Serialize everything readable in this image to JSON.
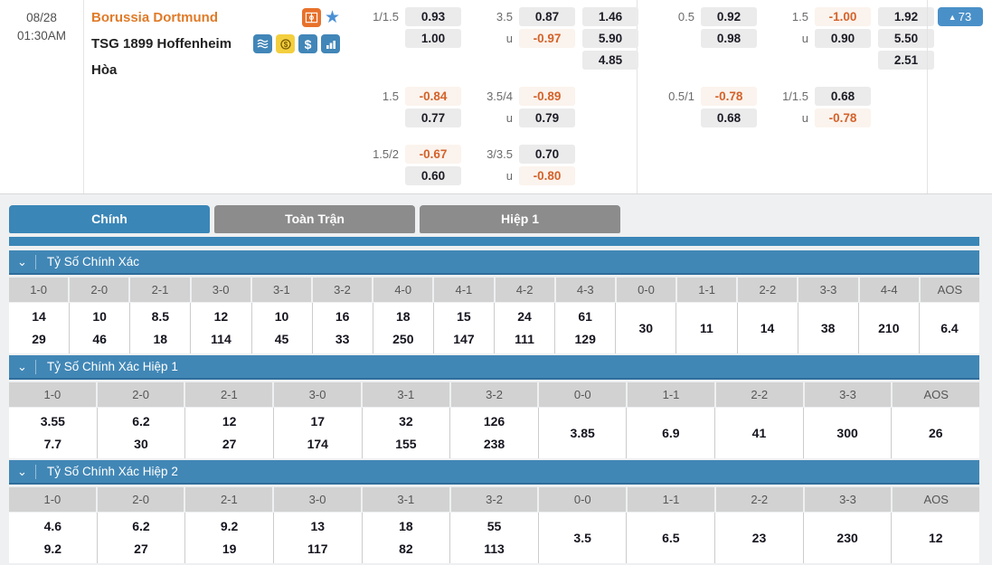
{
  "match": {
    "date": "08/28",
    "time": "01:30AM",
    "home_team": "Borussia Dortmund",
    "away_team": "TSG 1899 Hoffenheim",
    "draw_label": "Hòa",
    "index_badge": {
      "arrow": "▲",
      "value": "73"
    }
  },
  "odds": {
    "left": [
      {
        "handicap": {
          "line": "1/1.5",
          "home": "0.93",
          "away": "1.00"
        },
        "total": {
          "line": "3.5",
          "over": "0.87",
          "under_label": "u",
          "under": "-0.97"
        },
        "win_draw_win": [
          "1.46",
          "5.90",
          "4.85"
        ]
      },
      {
        "handicap": {
          "line": "1.5",
          "home": "-0.84",
          "away": "0.77"
        },
        "total": {
          "line": "3.5/4",
          "over": "-0.89",
          "under_label": "u",
          "under": "0.79"
        }
      },
      {
        "handicap": {
          "line": "1.5/2",
          "home": "-0.67",
          "away": "0.60"
        },
        "total": {
          "line": "3/3.5",
          "over": "0.70",
          "under_label": "u",
          "under": "-0.80"
        }
      }
    ],
    "right": [
      {
        "handicap": {
          "line": "0.5",
          "home": "0.92",
          "away": "0.98"
        },
        "total": {
          "line": "1.5",
          "over": "-1.00",
          "under_label": "u",
          "under": "0.90"
        },
        "win_draw_win": [
          "1.92",
          "5.50",
          "2.51"
        ]
      },
      {
        "handicap": {
          "line": "0.5/1",
          "home": "-0.78",
          "away": "0.68"
        },
        "total": {
          "line": "1/1.5",
          "over": "0.68",
          "under_label": "u",
          "under": "-0.78"
        }
      }
    ]
  },
  "tabs": [
    {
      "label": "Chính",
      "active": true
    },
    {
      "label": "Toàn Trận",
      "active": false
    },
    {
      "label": "Hiệp 1",
      "active": false
    }
  ],
  "sections": [
    {
      "title": "Tỷ Số Chính Xác",
      "columns": [
        "1-0",
        "2-0",
        "2-1",
        "3-0",
        "3-1",
        "3-2",
        "4-0",
        "4-1",
        "4-2",
        "4-3",
        "0-0",
        "1-1",
        "2-2",
        "3-3",
        "4-4",
        "AOS"
      ],
      "values": [
        [
          "14",
          "29"
        ],
        [
          "10",
          "46"
        ],
        [
          "8.5",
          "18"
        ],
        [
          "12",
          "114"
        ],
        [
          "10",
          "45"
        ],
        [
          "16",
          "33"
        ],
        [
          "18",
          "250"
        ],
        [
          "15",
          "147"
        ],
        [
          "24",
          "111"
        ],
        [
          "61",
          "129"
        ],
        [
          "30"
        ],
        [
          "11"
        ],
        [
          "14"
        ],
        [
          "38"
        ],
        [
          "210"
        ],
        [
          "6.4"
        ]
      ]
    },
    {
      "title": "Tỷ Số Chính Xác Hiệp 1",
      "columns": [
        "1-0",
        "2-0",
        "2-1",
        "3-0",
        "3-1",
        "3-2",
        "0-0",
        "1-1",
        "2-2",
        "3-3",
        "AOS"
      ],
      "values": [
        [
          "3.55",
          "7.7"
        ],
        [
          "6.2",
          "30"
        ],
        [
          "12",
          "27"
        ],
        [
          "17",
          "174"
        ],
        [
          "32",
          "155"
        ],
        [
          "126",
          "238"
        ],
        [
          "3.85"
        ],
        [
          "6.9"
        ],
        [
          "41"
        ],
        [
          "300"
        ],
        [
          "26"
        ]
      ]
    },
    {
      "title": "Tỷ Số Chính Xác Hiệp 2",
      "columns": [
        "1-0",
        "2-0",
        "2-1",
        "3-0",
        "3-1",
        "3-2",
        "0-0",
        "1-1",
        "2-2",
        "3-3",
        "AOS"
      ],
      "values": [
        [
          "4.6",
          "9.2"
        ],
        [
          "6.2",
          "27"
        ],
        [
          "9.2",
          "19"
        ],
        [
          "13",
          "117"
        ],
        [
          "18",
          "82"
        ],
        [
          "55",
          "113"
        ],
        [
          "3.5"
        ],
        [
          "6.5"
        ],
        [
          "23"
        ],
        [
          "230"
        ],
        [
          "12"
        ]
      ]
    }
  ],
  "icons": [
    "pitch-icon",
    "star-icon",
    "betslip-icon",
    "coin-icon",
    "dollar-icon",
    "stats-icon",
    "chevron-down-icon"
  ],
  "colors": {
    "accent_blue": "#3a86b7",
    "tab_gray": "#8c8c8c",
    "negative_orange": "#d4622a",
    "team_orange": "#e07b28",
    "header_gray": "#d2d2d2",
    "badge_blue": "#4a90c8"
  }
}
